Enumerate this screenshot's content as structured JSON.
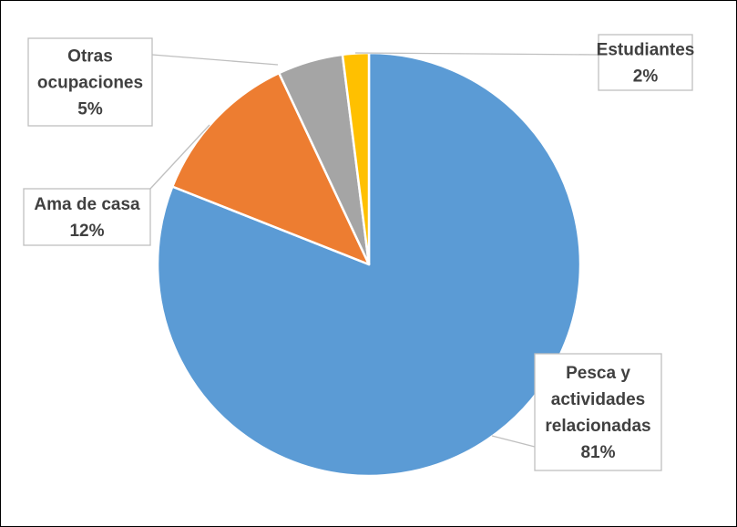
{
  "chart_data": {
    "type": "pie",
    "title": "",
    "slices": [
      {
        "label_lines": [
          "Pesca y",
          "actividades",
          "relacionadas"
        ],
        "pct_label": "81%",
        "value": 81,
        "color": "#5b9bd5"
      },
      {
        "label_lines": [
          "Ama de casa"
        ],
        "pct_label": "12%",
        "value": 12,
        "color": "#ed7d31"
      },
      {
        "label_lines": [
          "Otras",
          "ocupaciones"
        ],
        "pct_label": "5%",
        "value": 5,
        "color": "#a5a5a5"
      },
      {
        "label_lines": [
          "Estudiantes"
        ],
        "pct_label": "2%",
        "value": 2,
        "color": "#ffc000"
      }
    ],
    "legend": "none",
    "data_labels": "callouts"
  }
}
